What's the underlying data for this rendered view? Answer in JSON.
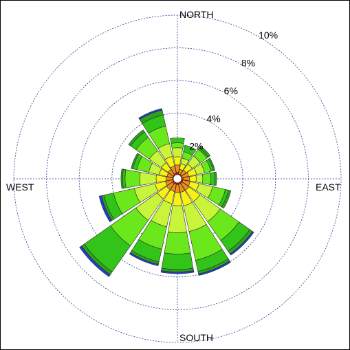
{
  "chart_data": {
    "type": "windrose",
    "title": "",
    "direction_labels": {
      "north": "NORTH",
      "east": "EAST",
      "south": "SOUTH",
      "west": "WEST"
    },
    "radial_axis": {
      "max_percent": 10,
      "ticks": [
        2,
        4,
        6,
        8,
        10
      ],
      "tick_labels": [
        "2%",
        "4%",
        "6%",
        "8%",
        "10%"
      ]
    },
    "calm_circle_percent": 0.25,
    "bin_colors": [
      "#d81e05",
      "#f58e12",
      "#f7f212",
      "#c8f53a",
      "#6ae81b",
      "#33c41a",
      "#2fa31f",
      "#1f3fd1",
      "#1a7ecf"
    ],
    "sectors": [
      {
        "direction": "N",
        "angle": 0,
        "cumulative": [
          0.4,
          0.85,
          1.35,
          1.9,
          2.2,
          2.5
        ]
      },
      {
        "direction": "NNE",
        "angle": 22.5,
        "cumulative": [
          0.3,
          0.6,
          0.95,
          1.3,
          1.7,
          2.1
        ]
      },
      {
        "direction": "NE",
        "angle": 45,
        "cumulative": [
          0.3,
          0.65,
          1.1,
          1.7,
          2.2,
          2.3,
          2.45
        ]
      },
      {
        "direction": "ENE",
        "angle": 67.5,
        "cumulative": [
          0.3,
          0.7,
          1.2,
          1.7,
          2.1,
          2.25,
          2.35
        ]
      },
      {
        "direction": "E",
        "angle": 90,
        "cumulative": [
          0.35,
          0.75,
          1.15,
          1.55,
          2.05,
          2.3,
          2.4
        ]
      },
      {
        "direction": "ESE",
        "angle": 112.5,
        "cumulative": [
          0.35,
          0.8,
          1.35,
          2.2,
          3.0,
          3.2,
          3.35
        ]
      },
      {
        "direction": "SE",
        "angle": 135,
        "cumulative": [
          0.35,
          0.85,
          1.7,
          3.2,
          4.6,
          5.4,
          5.6,
          5.7
        ]
      },
      {
        "direction": "SSE",
        "angle": 157.5,
        "cumulative": [
          0.35,
          0.85,
          1.7,
          3.3,
          5.1,
          5.8,
          5.95,
          6.05
        ]
      },
      {
        "direction": "S",
        "angle": 180,
        "cumulative": [
          0.35,
          0.85,
          1.65,
          3.3,
          4.6,
          5.55,
          5.7,
          5.8
        ]
      },
      {
        "direction": "SSW",
        "angle": 202.5,
        "cumulative": [
          0.35,
          0.8,
          1.55,
          3.0,
          4.4,
          5.2,
          5.35,
          5.45
        ]
      },
      {
        "direction": "SW",
        "angle": 225,
        "cumulative": [
          0.35,
          0.8,
          1.5,
          3.1,
          5.0,
          6.95,
          7.15,
          7.3
        ]
      },
      {
        "direction": "WSW",
        "angle": 247.5,
        "cumulative": [
          0.3,
          0.75,
          1.4,
          2.7,
          4.0,
          4.6,
          4.75,
          4.9
        ]
      },
      {
        "direction": "W",
        "angle": 270,
        "cumulative": [
          0.3,
          0.7,
          1.3,
          2.3,
          3.2,
          3.35,
          3.45
        ]
      },
      {
        "direction": "WNW",
        "angle": 292.5,
        "cumulative": [
          0.3,
          0.65,
          1.15,
          1.8,
          2.55,
          2.8,
          2.9
        ]
      },
      {
        "direction": "NW",
        "angle": 315,
        "cumulative": [
          0.3,
          0.7,
          1.2,
          2.1,
          3.1,
          3.5,
          3.65
        ]
      },
      {
        "direction": "NNW",
        "angle": 337.5,
        "cumulative": [
          0.35,
          0.8,
          1.4,
          2.2,
          3.3,
          4.0,
          4.3,
          4.4
        ]
      }
    ]
  }
}
